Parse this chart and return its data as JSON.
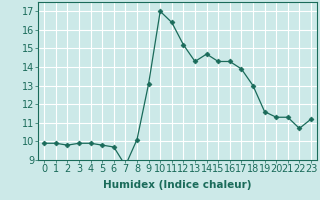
{
  "x": [
    0,
    1,
    2,
    3,
    4,
    5,
    6,
    7,
    8,
    9,
    10,
    11,
    12,
    13,
    14,
    15,
    16,
    17,
    18,
    19,
    20,
    21,
    22,
    23
  ],
  "y": [
    9.9,
    9.9,
    9.8,
    9.9,
    9.9,
    9.8,
    9.7,
    8.7,
    10.1,
    13.1,
    17.0,
    16.4,
    15.2,
    14.3,
    14.7,
    14.3,
    14.3,
    13.9,
    13.0,
    11.6,
    11.3,
    11.3,
    10.7,
    11.2
  ],
  "xlabel": "Humidex (Indice chaleur)",
  "ylim": [
    9,
    17.5
  ],
  "xlim": [
    -0.5,
    23.5
  ],
  "yticks": [
    9,
    10,
    11,
    12,
    13,
    14,
    15,
    16,
    17
  ],
  "line_color": "#1a6b5a",
  "marker_color": "#1a6b5a",
  "bg_color": "#cce9e8",
  "grid_color": "#ffffff",
  "tick_color": "#1a6b5a",
  "label_color": "#1a6b5a",
  "axis_fontsize": 7.5,
  "tick_fontsize": 7.0
}
